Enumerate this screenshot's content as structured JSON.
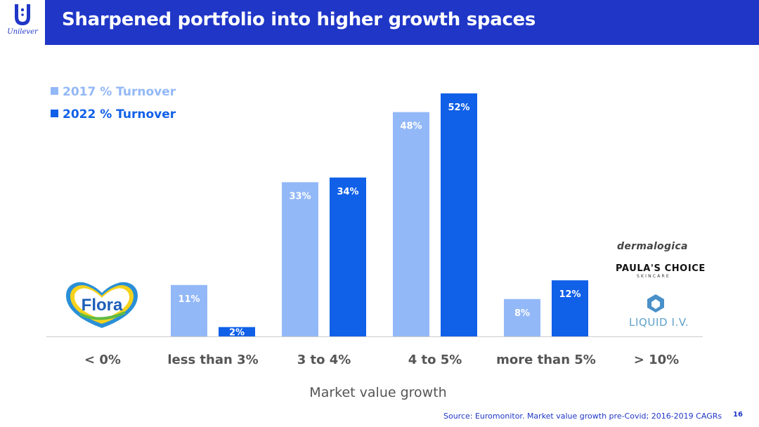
{
  "header": {
    "title": "Sharpened portfolio into higher growth spaces",
    "logo_text": "Unilever"
  },
  "legend": [
    {
      "label": "2017 % Turnover",
      "color": "#93b8f8"
    },
    {
      "label": "2022 % Turnover",
      "color": "#1060e8"
    }
  ],
  "brands": {
    "flora": "Flora",
    "dermalogica": "dermalogica",
    "paulas_choice": "PAULA'S CHOICE",
    "paulas_choice_sub": "SKINCARE",
    "liquid_iv": "LIQUID I.V."
  },
  "chart_data": {
    "type": "bar",
    "title": "",
    "xlabel": "Market value growth",
    "ylabel": "",
    "categories": [
      "< 0%",
      "less than 3%",
      "3 to 4%",
      "4 to 5%",
      "more than 5%",
      "> 10%"
    ],
    "series": [
      {
        "name": "2017 % Turnover",
        "values": [
          null,
          11,
          33,
          48,
          8,
          null
        ],
        "labels": [
          "",
          "11%",
          "33%",
          "48%",
          "8%",
          ""
        ]
      },
      {
        "name": "2022 % Turnover",
        "values": [
          null,
          2,
          34,
          52,
          12,
          null
        ],
        "labels": [
          "",
          "2%",
          "34%",
          "52%",
          "12%",
          ""
        ]
      }
    ],
    "colors": [
      "#93b8f8",
      "#1060e8"
    ],
    "ylim": [
      0,
      52
    ],
    "grid": false,
    "legend_position": "top-left"
  },
  "footer": {
    "source": "Source: Euromonitor. Market value growth pre-Covid; 2016-2019 CAGRs",
    "page_number": "16"
  }
}
